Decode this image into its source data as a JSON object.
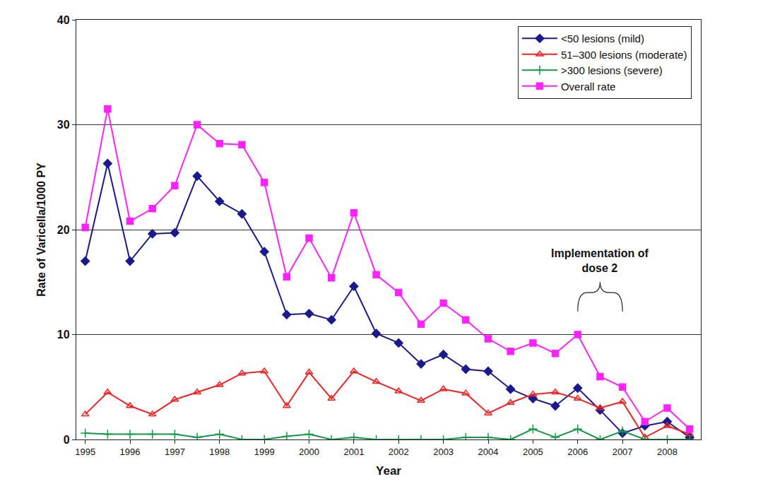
{
  "chart_data": {
    "type": "line",
    "x_label": "Year",
    "y_label": "Rate of Varicella/1000 PY",
    "x": [
      1995,
      1995.5,
      1996,
      1996.5,
      1997,
      1997.5,
      1998,
      1998.5,
      1999,
      1999.5,
      2000,
      2000.5,
      2001,
      2001.5,
      2002,
      2002.5,
      2003,
      2003.5,
      2004,
      2004.5,
      2005,
      2005.5,
      2006,
      2006.5,
      2007,
      2007.5,
      2008,
      2008.5
    ],
    "series": [
      {
        "name": "<50 lesions (mild)",
        "color": "#1a1a8c",
        "marker": "diamond",
        "line_style": "solid",
        "values": [
          17,
          26.3,
          17,
          19.6,
          19.7,
          25.1,
          22.7,
          21.5,
          17.9,
          11.9,
          12,
          11.4,
          14.6,
          10.1,
          9.2,
          7.2,
          8.1,
          6.7,
          6.5,
          4.8,
          3.9,
          3.2,
          4.9,
          2.8,
          0.6,
          1.3,
          1.7,
          0.2
        ]
      },
      {
        "name": "51–300 lesions (moderate)",
        "color": "#ee2222",
        "marker": "triangle-up-open",
        "line_style": "solid",
        "values": [
          2.4,
          4.5,
          3.2,
          2.4,
          3.8,
          4.5,
          5.2,
          6.3,
          6.5,
          3.2,
          6.4,
          3.9,
          6.5,
          5.5,
          4.6,
          3.7,
          4.8,
          4.4,
          2.5,
          3.5,
          4.3,
          4.5,
          3.9,
          3.0,
          3.6,
          0.2,
          1.3,
          0.5
        ]
      },
      {
        "name": ">300 lesions (severe)",
        "color": "#119944",
        "marker": "cross-thin",
        "line_style": "solid",
        "values": [
          0.6,
          0.5,
          0.5,
          0.5,
          0.5,
          0.2,
          0.5,
          0,
          0,
          0.3,
          0.5,
          0,
          0.2,
          0,
          0,
          0,
          0,
          0.2,
          0.2,
          0,
          1.0,
          0.2,
          1.0,
          0,
          0.8,
          0,
          0,
          0
        ]
      },
      {
        "name": "Overall rate",
        "color": "#ff22ff",
        "marker": "square",
        "line_style": "solid",
        "values": [
          20.2,
          31.5,
          20.8,
          22,
          24.2,
          30,
          28.2,
          28.1,
          24.5,
          15.5,
          19.2,
          15.4,
          21.6,
          15.7,
          14,
          11,
          13,
          11.4,
          9.6,
          8.4,
          9.2,
          8.2,
          10,
          6,
          5,
          1.7,
          3,
          1
        ]
      }
    ],
    "xlim": [
      1994.8,
      2008.75
    ],
    "xticks": [
      1995,
      1996,
      1997,
      1998,
      1999,
      2000,
      2001,
      2002,
      2003,
      2004,
      2005,
      2006,
      2007,
      2008
    ],
    "ylim": [
      0,
      40
    ],
    "yticks": [
      0,
      10,
      20,
      30,
      40
    ],
    "grid": true,
    "legend": "top right",
    "annotations": [
      {
        "text": "Implementation of\ndose 2",
        "x": [
          2006,
          2007
        ],
        "y": 12.2
      }
    ]
  }
}
